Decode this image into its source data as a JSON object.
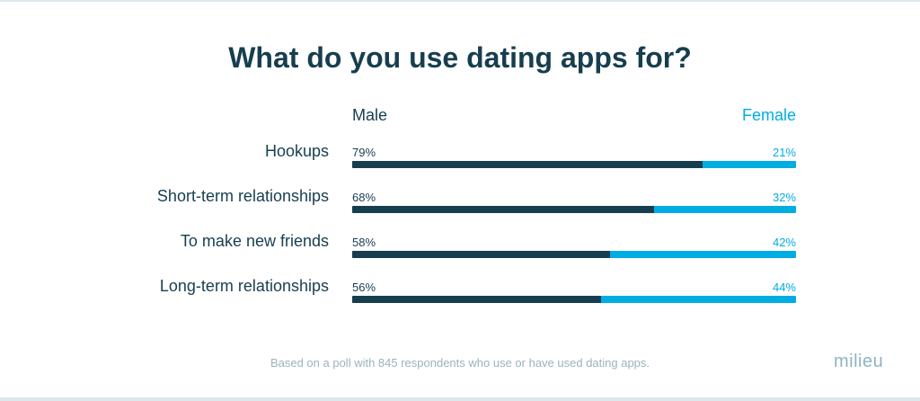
{
  "chart_data": {
    "type": "bar",
    "stacked": true,
    "orientation": "horizontal",
    "title": "What do you use dating apps for?",
    "categories": [
      "Hookups",
      "Short-term relationships",
      "To make new friends",
      "Long-term relationships"
    ],
    "series": [
      {
        "name": "Male",
        "values": [
          79,
          68,
          58,
          56
        ],
        "labels": [
          "79%",
          "68%",
          "58%",
          "56%"
        ],
        "color": "#173e4f"
      },
      {
        "name": "Female",
        "values": [
          21,
          32,
          42,
          44
        ],
        "labels": [
          "21%",
          "32%",
          "42%",
          "44%"
        ],
        "color": "#00ade2"
      }
    ],
    "xlim": [
      0,
      100
    ],
    "legend": "top",
    "grid": false
  },
  "footer": "Based on a poll with 845 respondents who use or have used dating apps.",
  "logo": "milieu"
}
